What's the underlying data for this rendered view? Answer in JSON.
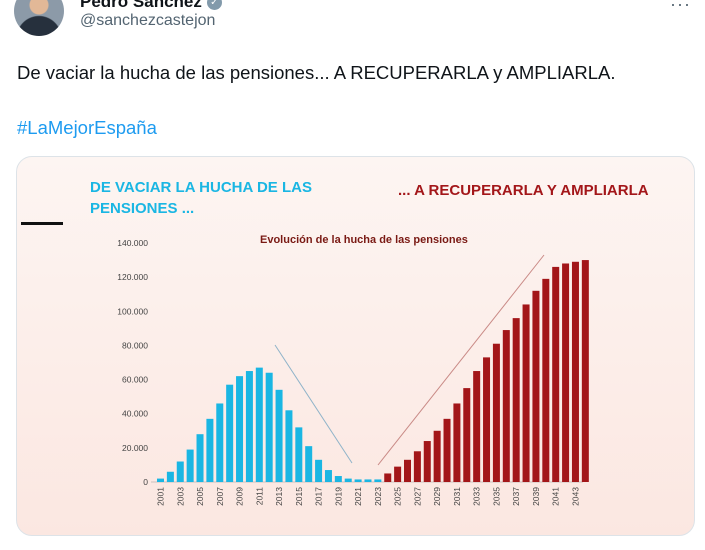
{
  "tweet": {
    "display_name": "Pedro Sánchez",
    "handle": "@sanchezcastejon",
    "text": "De vaciar la hucha de las pensiones... A RECUPERARLA y AMPLIARLA.",
    "hashtag": "#LaMejorEspaña"
  },
  "colors": {
    "link": "#1d9bf0",
    "left_bars": "#1ab6e3",
    "right_bars": "#a31619"
  },
  "icons": {
    "verified": "verified-badge-icon",
    "more": "more-options-icon"
  },
  "chart_data": {
    "type": "bar",
    "title": "Evolución de la hucha de las pensiones",
    "headline_left": [
      "DE VACIAR LA HUCHA DE LAS",
      "PENSIONES ..."
    ],
    "headline_right": "... A RECUPERARLA Y AMPLIARLA",
    "xlabel": "",
    "ylabel": "",
    "ylim": [
      0,
      140000
    ],
    "y_ticks": [
      "0",
      "20.000",
      "40.000",
      "60.000",
      "80.000",
      "100.000",
      "120.000",
      "140.000"
    ],
    "x_tick_labels": [
      "2001",
      "2003",
      "2005",
      "2007",
      "2009",
      "2011",
      "2013",
      "2015",
      "2017",
      "2019",
      "2021",
      "2023",
      "2025",
      "2027",
      "2029",
      "2031",
      "2033",
      "2035",
      "2037",
      "2039",
      "2041",
      "2043"
    ],
    "series": [
      {
        "values": [
          2000,
          6000,
          12000,
          19000,
          28000,
          37000,
          46000,
          57000,
          62000,
          65000,
          67000,
          64000,
          54000,
          42000,
          32000,
          21000,
          13000,
          7000,
          3500,
          2000,
          1500,
          1500,
          1500
        ]
      },
      {
        "values": [
          5000,
          9000,
          13000,
          18000,
          24000,
          30000,
          37000,
          46000,
          55000,
          65000,
          73000,
          81000,
          89000,
          96000,
          104000,
          112000,
          119000,
          126000,
          128000,
          129000,
          130000
        ]
      }
    ]
  }
}
